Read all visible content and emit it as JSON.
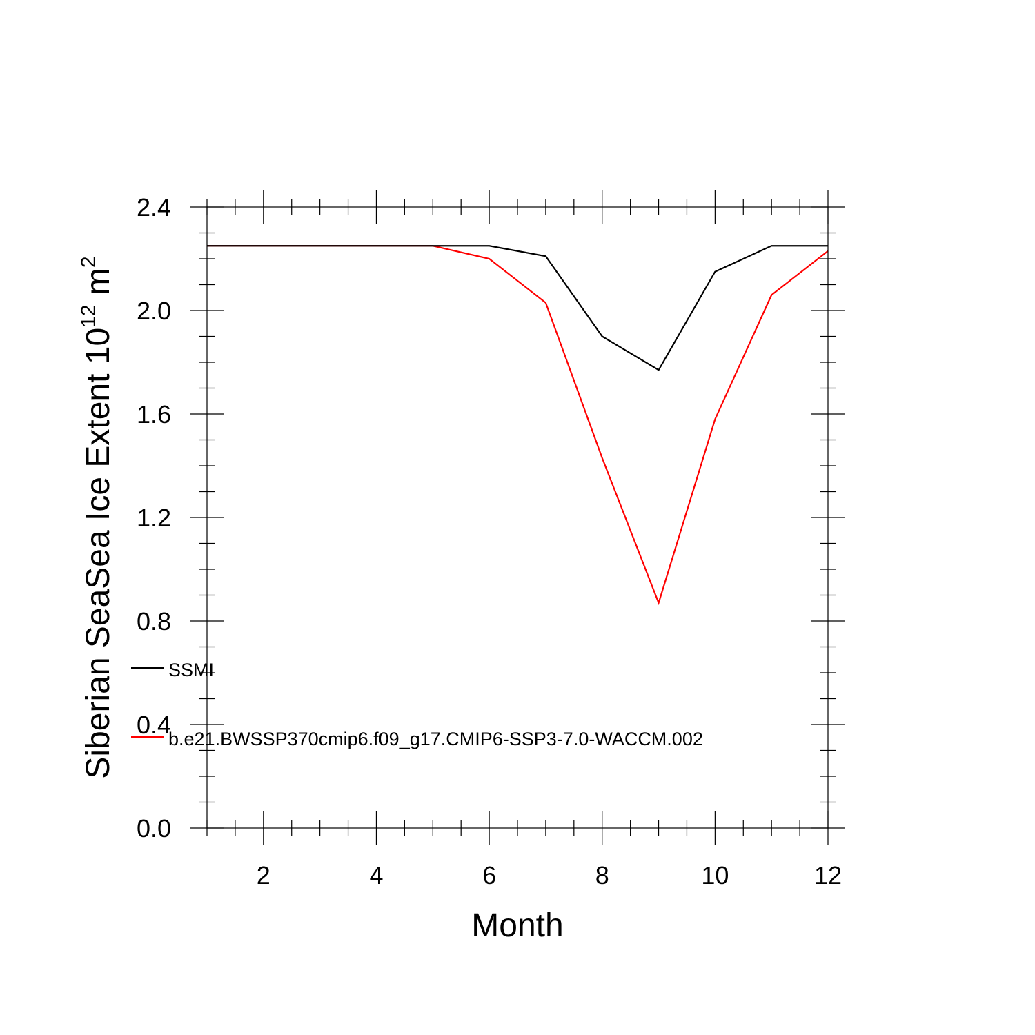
{
  "chart_data": {
    "type": "line",
    "title": "",
    "xlabel": "Month",
    "ylabel": "Siberian SeaSea Ice Extent 10",
    "ylabel_exponent": "12",
    "ylabel_unit": "m",
    "ylabel_unit_exponent": "2",
    "xlim": [
      1,
      12
    ],
    "ylim": [
      0.0,
      2.4
    ],
    "x_ticks": [
      2,
      4,
      6,
      8,
      10,
      12
    ],
    "x_tick_labels": [
      "2",
      "4",
      "6",
      "8",
      "10",
      "12"
    ],
    "y_ticks": [
      0.0,
      0.4,
      0.8,
      1.2,
      1.6,
      2.0,
      2.4
    ],
    "y_tick_labels": [
      "0.0",
      "0.4",
      "0.8",
      "1.2",
      "1.6",
      "2.0",
      "2.4"
    ],
    "grid": false,
    "legend_position": "lower-left",
    "x": [
      1,
      2,
      3,
      4,
      5,
      6,
      7,
      8,
      9,
      10,
      11,
      12
    ],
    "series": [
      {
        "name": "SSMI",
        "color": "#000000",
        "values": [
          2.25,
          2.25,
          2.25,
          2.25,
          2.25,
          2.25,
          2.21,
          1.9,
          1.77,
          2.15,
          2.25,
          2.25
        ]
      },
      {
        "name": "b.e21.BWSSP370cmip6.f09_g17.CMIP6-SSP3-7.0-WACCM.002",
        "color": "#ff0000",
        "values": [
          2.25,
          2.25,
          2.25,
          2.25,
          2.25,
          2.2,
          2.03,
          1.43,
          0.87,
          1.58,
          2.06,
          2.23
        ]
      }
    ]
  }
}
